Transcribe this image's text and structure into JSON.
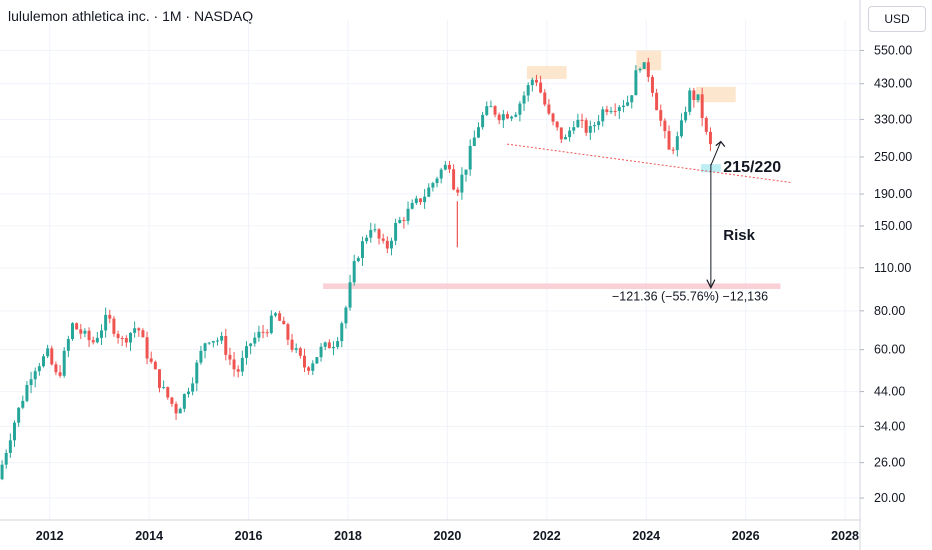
{
  "header": {
    "title": "lululemon athletica inc. · 1M · NASDAQ",
    "currency": "USD"
  },
  "colors": {
    "up": "#26a69a",
    "down": "#ef5350",
    "support_zone": "#b2ebf2",
    "target_zone": "#f8c9cf",
    "peak_zone": "#fde2c6",
    "trendline": "#ef5350"
  },
  "annotations": {
    "support_label": "215/220",
    "risk_label": "Risk",
    "measure_label": "−121.36 (−55.76%) −12,136"
  },
  "chart_data": {
    "type": "candlestick",
    "y_scale": "log",
    "ylim": [
      17,
      640
    ],
    "xlim": [
      2011.0,
      2028.3
    ],
    "y_ticks": [
      "550.00",
      "430.00",
      "330.00",
      "250.00",
      "190.00",
      "150.00",
      "110.00",
      "80.00",
      "60.00",
      "44.00",
      "34.00",
      "26.00",
      "20.00"
    ],
    "x_ticks": [
      "2012",
      "2014",
      "2016",
      "2018",
      "2020",
      "2022",
      "2024",
      "2026",
      "2028"
    ],
    "anchors": [
      [
        2011.0,
        23
      ],
      [
        2011.3,
        34
      ],
      [
        2011.7,
        52
      ],
      [
        2012.0,
        58
      ],
      [
        2012.2,
        48
      ],
      [
        2012.5,
        72
      ],
      [
        2012.9,
        63
      ],
      [
        2013.2,
        76
      ],
      [
        2013.5,
        64
      ],
      [
        2013.8,
        72
      ],
      [
        2014.0,
        58
      ],
      [
        2014.3,
        45
      ],
      [
        2014.6,
        38
      ],
      [
        2014.9,
        48
      ],
      [
        2015.2,
        66
      ],
      [
        2015.5,
        64
      ],
      [
        2015.8,
        50
      ],
      [
        2016.1,
        64
      ],
      [
        2016.4,
        70
      ],
      [
        2016.6,
        78
      ],
      [
        2016.9,
        62
      ],
      [
        2017.2,
        52
      ],
      [
        2017.5,
        60
      ],
      [
        2017.8,
        64
      ],
      [
        2018.0,
        82
      ],
      [
        2018.2,
        118
      ],
      [
        2018.5,
        150
      ],
      [
        2018.8,
        125
      ],
      [
        2019.0,
        150
      ],
      [
        2019.3,
        170
      ],
      [
        2019.6,
        190
      ],
      [
        2019.9,
        225
      ],
      [
        2020.1,
        240
      ],
      [
        2020.2,
        190
      ],
      [
        2020.4,
        230
      ],
      [
        2020.7,
        330
      ],
      [
        2020.9,
        360
      ],
      [
        2021.1,
        340
      ],
      [
        2021.4,
        350
      ],
      [
        2021.6,
        400
      ],
      [
        2021.8,
        460
      ],
      [
        2022.1,
        330
      ],
      [
        2022.4,
        280
      ],
      [
        2022.6,
        330
      ],
      [
        2022.9,
        300
      ],
      [
        2023.2,
        360
      ],
      [
        2023.5,
        370
      ],
      [
        2023.7,
        380
      ],
      [
        2023.9,
        505
      ],
      [
        2024.1,
        460
      ],
      [
        2024.3,
        340
      ],
      [
        2024.5,
        260
      ],
      [
        2024.7,
        290
      ],
      [
        2024.9,
        400
      ],
      [
        2025.1,
        380
      ],
      [
        2025.3,
        270
      ]
    ],
    "zones": [
      {
        "label": "support",
        "x": [
          2025.1,
          2025.5
        ],
        "y": [
          223,
          237
        ]
      },
      {
        "label": "target",
        "x": [
          2017.5,
          2026.7
        ],
        "y": [
          94,
          98
        ]
      },
      {
        "label": "peak-1",
        "x": [
          2021.6,
          2022.4
        ],
        "y": [
          445,
          490
        ]
      },
      {
        "label": "peak-2",
        "x": [
          2023.8,
          2024.3
        ],
        "y": [
          475,
          550
        ]
      },
      {
        "label": "peak-3",
        "x": [
          2025.0,
          2025.8
        ],
        "y": [
          375,
          420
        ]
      }
    ],
    "trendline": [
      [
        2021.2,
        275
      ],
      [
        2026.9,
        207
      ]
    ],
    "risk_arrow": {
      "x": 2025.3,
      "y": [
        237,
        95
      ]
    },
    "up_arrow": {
      "from": [
        2025.3,
        235
      ],
      "to": [
        2025.5,
        280
      ]
    }
  }
}
